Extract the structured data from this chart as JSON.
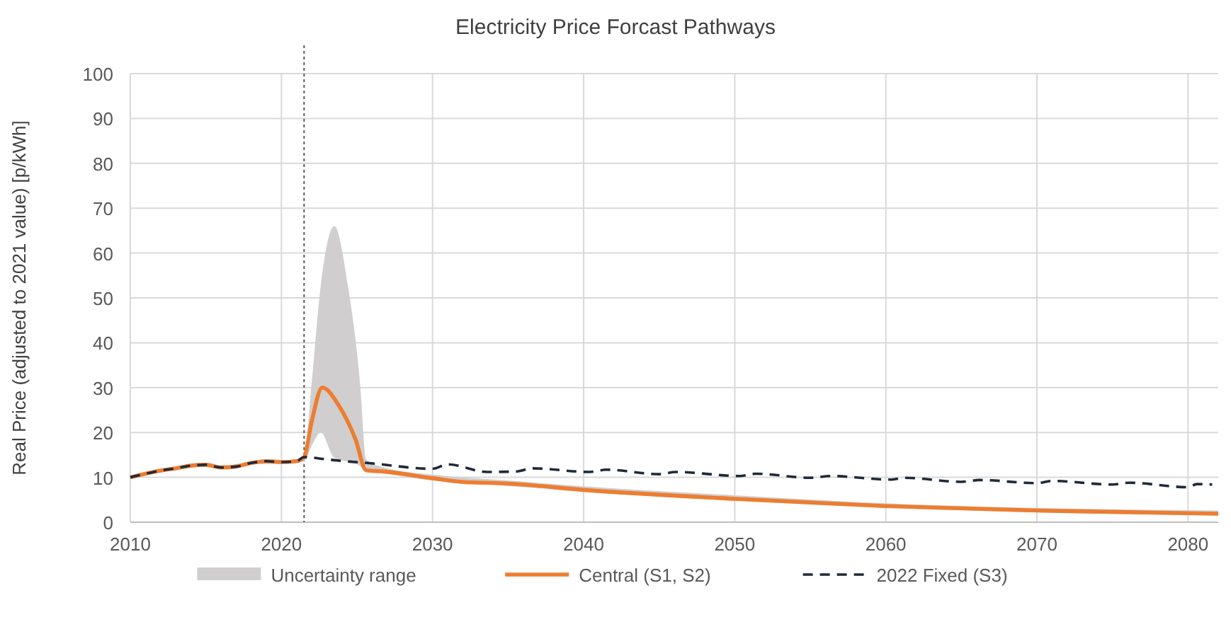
{
  "chart_data": {
    "type": "line",
    "title": "Electricity Price Forcast Pathways",
    "ylabel": "Real Price (adjusted to 2021 value) [p/kWh]",
    "xlim": [
      2010,
      2082
    ],
    "xticks": [
      2010,
      2020,
      2030,
      2040,
      2050,
      2060,
      2070,
      2080
    ],
    "ylim": [
      0,
      100
    ],
    "yticks": [
      0,
      10,
      20,
      30,
      40,
      50,
      60,
      70,
      80,
      90,
      100
    ],
    "grid": true,
    "legend": "bottom",
    "ref_lines": [
      {
        "axis": "x",
        "value": 2021.5,
        "color": "#595959",
        "line_style": "dotted"
      }
    ],
    "series": [
      {
        "name": "Uncertainty range",
        "type": "area",
        "color": "#d0cece",
        "x": [
          2010,
          2012,
          2014,
          2015,
          2016,
          2018,
          2020,
          2021.5,
          2022,
          2022.6,
          2023.5,
          2024.4,
          2025.2,
          2025.6,
          2026.8,
          2030,
          2035,
          2040,
          2050,
          2060,
          2070,
          2082
        ],
        "values": [
          null,
          null,
          null,
          null,
          null,
          null,
          null,
          null,
          null,
          null,
          null,
          null,
          null,
          null,
          null,
          null,
          null,
          null,
          null,
          null,
          null,
          null
        ],
        "lower": [
          9.7,
          11.2,
          12.3,
          12.5,
          11.9,
          12.9,
          13.1,
          13.6,
          17,
          20,
          14.4,
          13.5,
          12.5,
          11.2,
          10.8,
          9.3,
          8.1,
          6.8,
          4.8,
          3.2,
          2.2,
          1.5
        ],
        "upper": [
          10.3,
          11.8,
          12.9,
          13.1,
          12.5,
          13.5,
          13.7,
          14.6,
          31,
          52.7,
          66,
          52.7,
          31,
          14,
          12.2,
          10.6,
          9.3,
          8,
          6,
          4.2,
          3.2,
          2.6
        ]
      },
      {
        "name": "Central (S1, S2)",
        "color": "#ed7d31",
        "x": [
          2010,
          2011,
          2012,
          2013,
          2014,
          2015,
          2016,
          2017,
          2018,
          2019,
          2020,
          2021,
          2021.5,
          2022,
          2022.7,
          2023.8,
          2024.9,
          2025.6,
          2026.8,
          2030,
          2032.2,
          2033.5,
          2035,
          2040,
          2050,
          2060,
          2070,
          2082
        ],
        "values": [
          10,
          10.8,
          11.5,
          12,
          12.6,
          12.8,
          12.2,
          12.4,
          13.2,
          13.6,
          13.4,
          13.6,
          14.5,
          22.4,
          30,
          26,
          18.5,
          11.6,
          11.3,
          9.8,
          8.9,
          8.8,
          8.6,
          7.2,
          5.2,
          3.6,
          2.6,
          1.9
        ]
      },
      {
        "name": "2022 Fixed (S3)",
        "color": "#1f2a3a",
        "line_style": "dashed",
        "x": [
          2010,
          2011,
          2012,
          2013,
          2014,
          2015,
          2016,
          2017,
          2018,
          2019,
          2020,
          2021,
          2021.5,
          2023,
          2024.5,
          2025.7,
          2030,
          2031,
          2033.6,
          2035.5,
          2036.6,
          2040.4,
          2041.5,
          2045,
          2046.1,
          2050.3,
          2051.4,
          2055,
          2056.3,
          2060.3,
          2061.3,
          2065,
          2066.2,
          2070,
          2071,
          2075,
          2076.1,
          2080,
          2080.6,
          2081.6
        ],
        "values": [
          10,
          10.8,
          11.5,
          12,
          12.6,
          12.8,
          12.2,
          12.4,
          13.2,
          13.6,
          13.4,
          13.6,
          14.5,
          14,
          13.5,
          13.2,
          11.9,
          12.9,
          11.2,
          11.3,
          12,
          11.2,
          11.7,
          10.7,
          11.2,
          10.3,
          10.8,
          9.9,
          10.3,
          9.5,
          9.9,
          9,
          9.4,
          8.7,
          9.2,
          8.4,
          8.8,
          7.8,
          8.5,
          8.4
        ]
      }
    ]
  }
}
